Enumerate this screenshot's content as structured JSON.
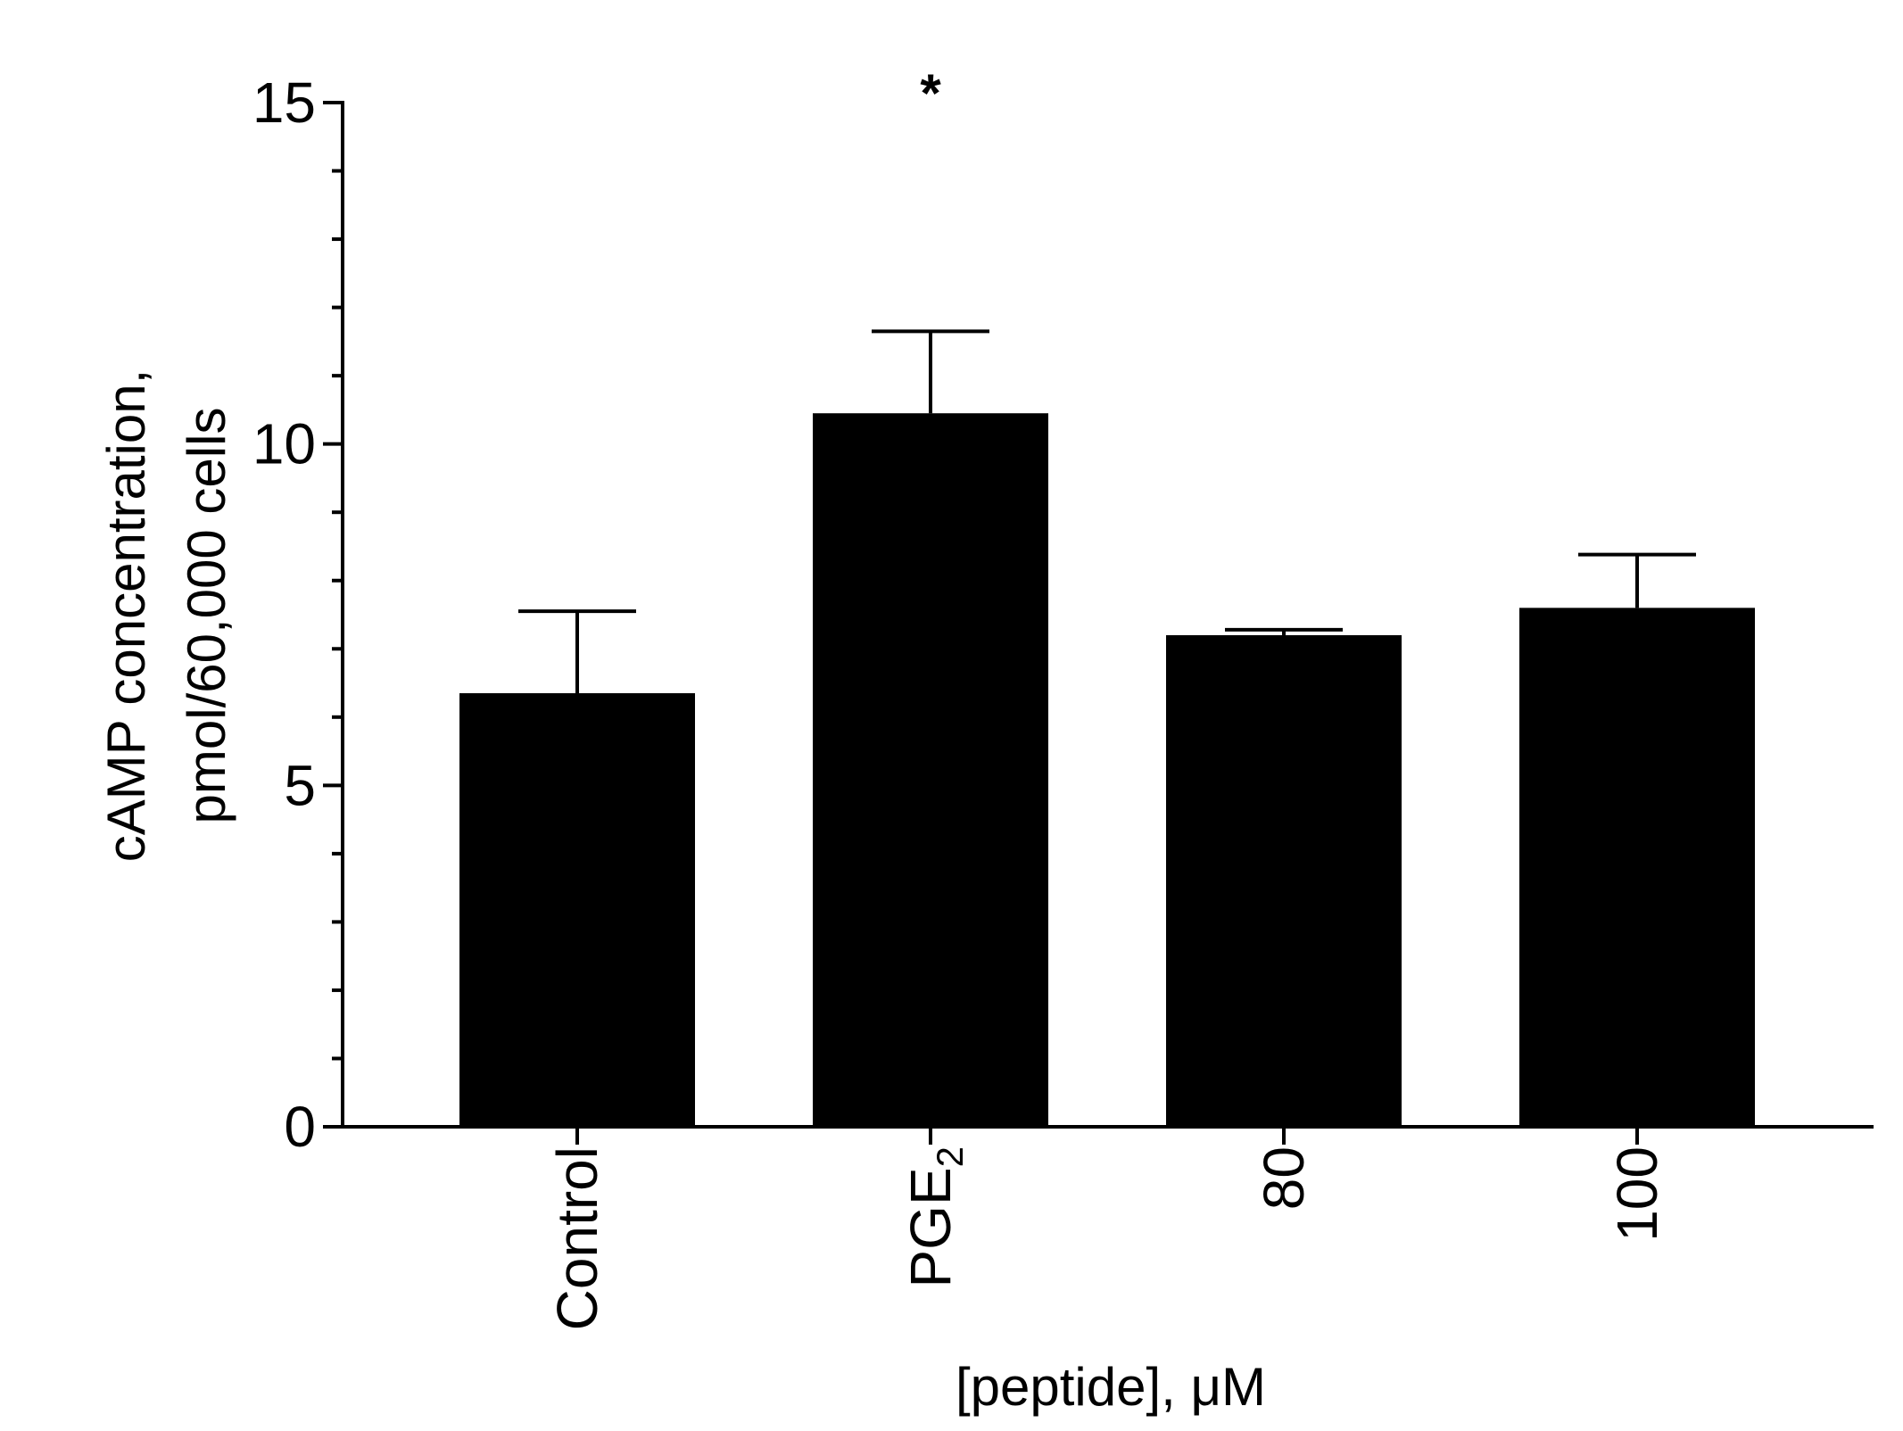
{
  "chart_data": {
    "type": "bar",
    "title": "",
    "categories": [
      "Control",
      "PGE",
      "80",
      "100"
    ],
    "category_subscripts": [
      "",
      "2",
      "",
      ""
    ],
    "values": [
      6.35,
      10.45,
      7.2,
      7.6
    ],
    "errors": [
      1.2,
      1.2,
      0.08,
      0.78
    ],
    "annotations": [
      "",
      "*",
      "",
      ""
    ],
    "xlabel": "[peptide], μM",
    "ylabel_lines": [
      "cAMP concentration,",
      "pmol/60,000 cells"
    ],
    "ylim": [
      0,
      15
    ],
    "y_major_ticks": [
      0,
      5,
      10,
      15
    ],
    "y_minor_step": 1,
    "bar_color": "#000000",
    "grid": false,
    "legend": "none"
  }
}
